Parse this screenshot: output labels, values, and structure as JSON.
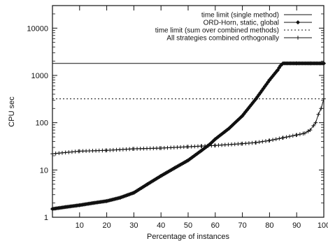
{
  "chart_data": {
    "type": "line",
    "xlabel": "Percentage of instances",
    "ylabel": "CPU sec",
    "xlim": [
      0,
      100
    ],
    "ylim": [
      1,
      30000
    ],
    "yscale": "log",
    "x_ticks": [
      10,
      20,
      30,
      40,
      50,
      60,
      70,
      80,
      90,
      100
    ],
    "y_ticks": [
      {
        "value": 1,
        "label": "1"
      },
      {
        "value": 10,
        "label": "10"
      },
      {
        "value": 100,
        "label": "100"
      },
      {
        "value": 1000,
        "label": "1000"
      },
      {
        "value": 10000,
        "label": "10000"
      }
    ],
    "grid": false,
    "legend_position": "top-right",
    "series": [
      {
        "name": "time limit (single method)",
        "style": "solid",
        "marker": "none",
        "x": [
          0,
          100
        ],
        "y": [
          1800,
          1800
        ]
      },
      {
        "name": "ORD-Horn, static, global",
        "style": "solid",
        "marker": "diamond",
        "x": [
          0,
          5,
          10,
          15,
          20,
          25,
          30,
          35,
          40,
          45,
          50,
          55,
          58,
          60,
          65,
          70,
          75,
          80,
          83,
          84,
          85,
          90,
          95,
          100
        ],
        "y": [
          1.5,
          1.65,
          1.8,
          2.0,
          2.2,
          2.6,
          3.3,
          5.0,
          7.5,
          11,
          16,
          26,
          35,
          45,
          75,
          140,
          320,
          800,
          1300,
          1600,
          1800,
          1800,
          1800,
          1800
        ]
      },
      {
        "name": "time limit (sum over combined methods)",
        "style": "dotted",
        "marker": "none",
        "x": [
          0,
          100
        ],
        "y": [
          320,
          320
        ]
      },
      {
        "name": "All strategies combined orthogonally",
        "style": "solid",
        "marker": "plus",
        "x": [
          0,
          10,
          20,
          30,
          40,
          50,
          55,
          60,
          70,
          75,
          80,
          85,
          90,
          93,
          95,
          97,
          98,
          99,
          100
        ],
        "y": [
          22,
          25,
          26,
          28,
          29,
          31,
          32,
          33,
          36,
          38,
          42,
          48,
          55,
          60,
          70,
          100,
          150,
          200,
          320
        ]
      }
    ]
  }
}
